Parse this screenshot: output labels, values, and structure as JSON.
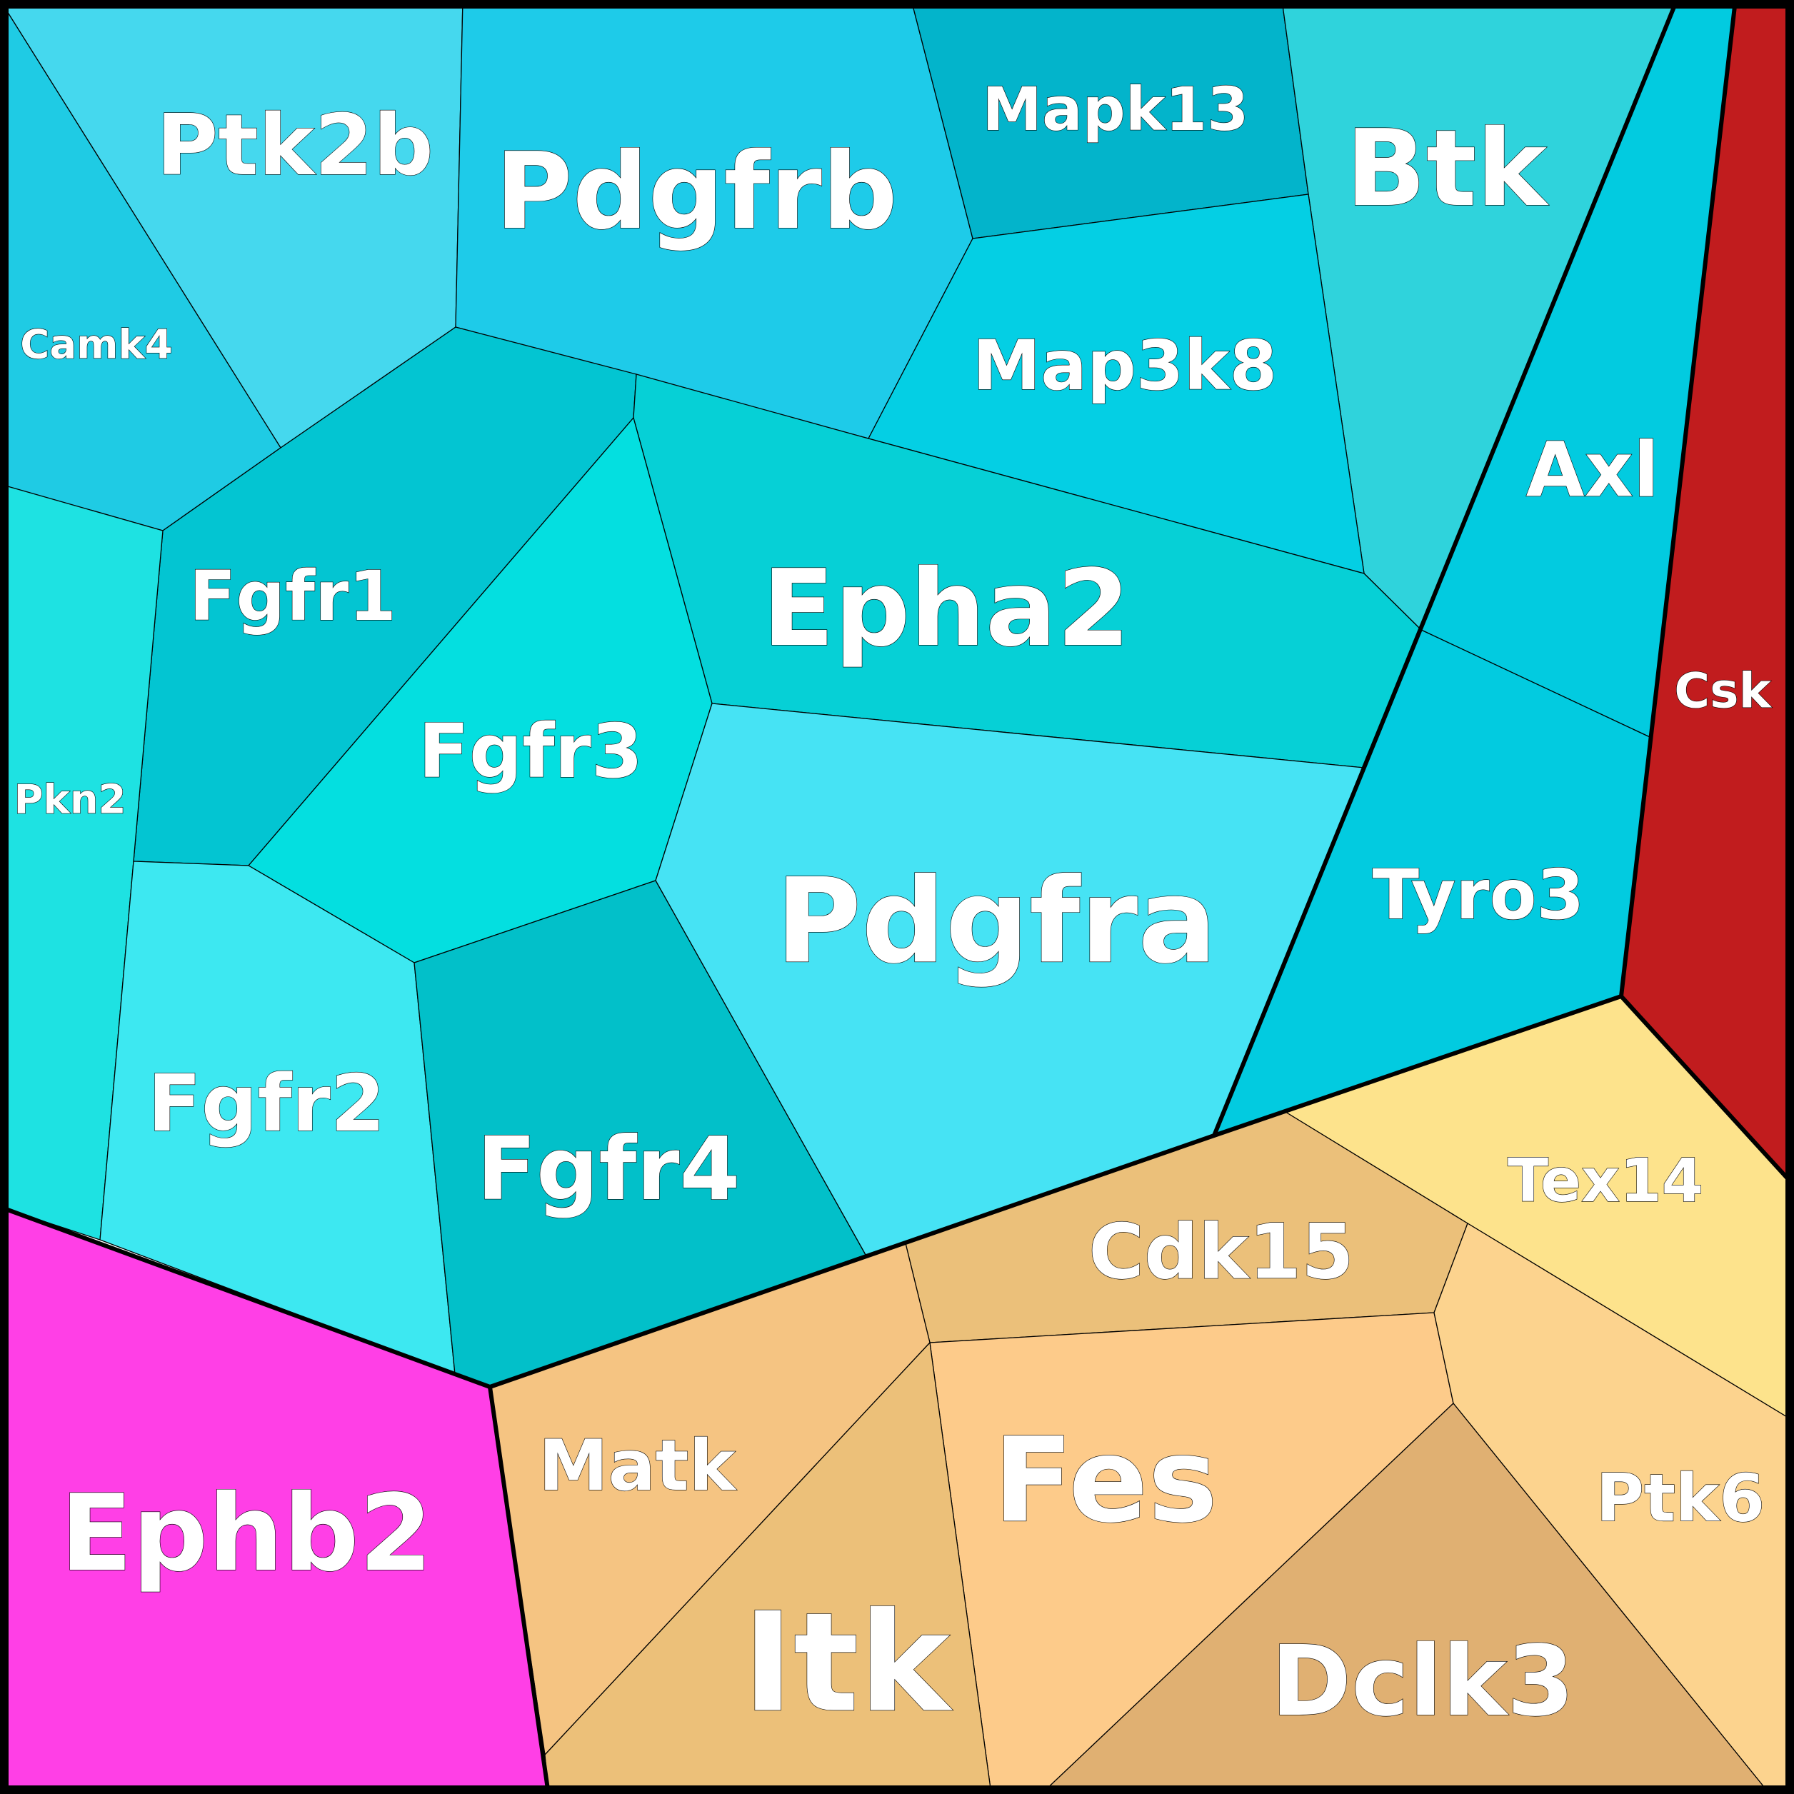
{
  "diagram": {
    "type": "voronoi-treemap",
    "cells": [
      {
        "id": "ptk2b",
        "label": "Ptk2b",
        "color": "#45d8ee"
      },
      {
        "id": "pdgfrb",
        "label": "Pdgfrb",
        "color": "#1ecbe9"
      },
      {
        "id": "mapk13",
        "label": "Mapk13",
        "color": "#03b4cb"
      },
      {
        "id": "btk",
        "label": "Btk",
        "color": "#2fd3dc"
      },
      {
        "id": "camk4",
        "label": "Camk4",
        "color": "#1fcbe4"
      },
      {
        "id": "map3k8",
        "label": "Map3k8",
        "color": "#04cfe4"
      },
      {
        "id": "axl",
        "label": "Axl",
        "color": "#02cbe0"
      },
      {
        "id": "csk",
        "label": "Csk",
        "color": "#c11c1e"
      },
      {
        "id": "fgfr1",
        "label": "Fgfr1",
        "color": "#03c5d2"
      },
      {
        "id": "epha2",
        "label": "Epha2",
        "color": "#06d0d6"
      },
      {
        "id": "fgfr3",
        "label": "Fgfr3",
        "color": "#04dfe0"
      },
      {
        "id": "pkn2",
        "label": "Pkn2",
        "color": "#1ee2e2"
      },
      {
        "id": "tyro3",
        "label": "Tyro3",
        "color": "#02cbe0"
      },
      {
        "id": "pdgfra",
        "label": "Pdgfra",
        "color": "#46e3f4"
      },
      {
        "id": "fgfr2",
        "label": "Fgfr2",
        "color": "#3de8f1"
      },
      {
        "id": "fgfr4",
        "label": "Fgfr4",
        "color": "#02c0c9"
      },
      {
        "id": "tex14",
        "label": "Tex14",
        "color": "#fde38c"
      },
      {
        "id": "cdk15",
        "label": "Cdk15",
        "color": "#ebc07a"
      },
      {
        "id": "ephb2",
        "label": "Ephb2",
        "color": "#ff3fe6"
      },
      {
        "id": "matk",
        "label": "Matk",
        "color": "#f5c482"
      },
      {
        "id": "fes",
        "label": "Fes",
        "color": "#fdcb8a"
      },
      {
        "id": "ptk6",
        "label": "Ptk6",
        "color": "#fcd38e"
      },
      {
        "id": "itk",
        "label": "Itk",
        "color": "#ecc079"
      },
      {
        "id": "dclk3",
        "label": "Dclk3",
        "color": "#e0b072"
      }
    ]
  }
}
